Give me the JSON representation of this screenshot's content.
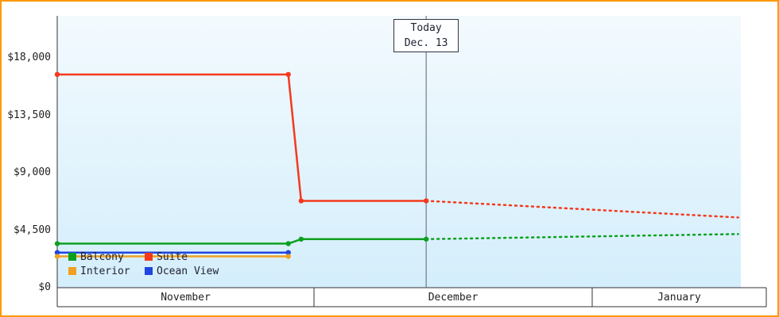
{
  "frame": {
    "border_color": "#ff9800",
    "plot_background_top": "#f3fafe",
    "plot_background_bottom": "#d4eefb"
  },
  "chart_data": {
    "type": "line",
    "title": "",
    "xlabel": "",
    "ylabel": "",
    "ylim": [
      0,
      18000
    ],
    "grid": false,
    "legend_position": "bottom-left-inside",
    "y_axis": {
      "ticks": [
        {
          "label": "$18,000",
          "value": 18000
        },
        {
          "label": "$13,500",
          "value": 13500
        },
        {
          "label": "$9,000",
          "value": 9000
        },
        {
          "label": "$4,500",
          "value": 4500
        },
        {
          "label": "$0",
          "value": 0
        }
      ]
    },
    "x_axis": {
      "months": [
        {
          "label": "November",
          "days": 30
        },
        {
          "label": "December",
          "days": 31
        },
        {
          "label": "January",
          "days": 31
        }
      ]
    },
    "today": {
      "label": "Today",
      "date": "Dec. 13",
      "day_index": 42.5
    },
    "series": [
      {
        "name": "Suite",
        "color": "#f5391d",
        "points": [
          {
            "day": 0,
            "value": 16700
          },
          {
            "day": 27,
            "value": 16700
          },
          {
            "day": 28.5,
            "value": 6800
          },
          {
            "day": 42.5,
            "value": 6800
          }
        ],
        "forecast": [
          {
            "day": 42.5,
            "value": 6800
          },
          {
            "day": 87,
            "value": 5500
          }
        ]
      },
      {
        "name": "Balcony",
        "color": "#0ca021",
        "points": [
          {
            "day": 0,
            "value": 3450
          },
          {
            "day": 27,
            "value": 3450
          },
          {
            "day": 28.5,
            "value": 3800
          },
          {
            "day": 42.5,
            "value": 3800
          }
        ],
        "forecast": [
          {
            "day": 42.5,
            "value": 3800
          },
          {
            "day": 87,
            "value": 4200
          }
        ]
      },
      {
        "name": "Ocean View",
        "color": "#2145df",
        "points": [
          {
            "day": 0,
            "value": 2750
          },
          {
            "day": 27,
            "value": 2750
          }
        ],
        "forecast": []
      },
      {
        "name": "Interior",
        "color": "#f0a122",
        "points": [
          {
            "day": 0,
            "value": 2450
          },
          {
            "day": 27,
            "value": 2450
          }
        ],
        "forecast": []
      }
    ],
    "legend": {
      "rows": [
        [
          {
            "label": "Balcony",
            "color": "#0ca021"
          },
          {
            "label": "Suite",
            "color": "#f5391d"
          }
        ],
        [
          {
            "label": "Interior",
            "color": "#f0a122"
          },
          {
            "label": "Ocean View",
            "color": "#2145df"
          }
        ]
      ]
    }
  }
}
